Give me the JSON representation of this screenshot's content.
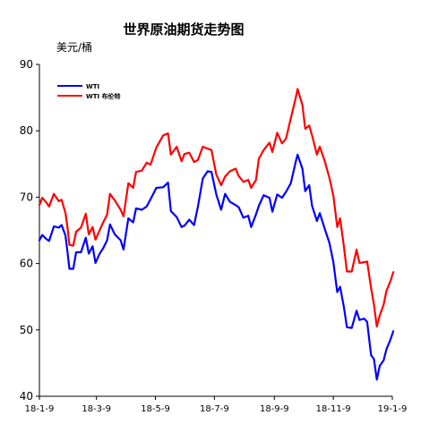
{
  "chart_data": {
    "type": "line",
    "title": "世界原油期货走势图",
    "ylabel": "美元/桶",
    "xlabel": "",
    "ylim": [
      40,
      90
    ],
    "yticks": [
      40,
      50,
      60,
      70,
      80,
      90
    ],
    "xticks": [
      "18-1-9",
      "18-3-9",
      "18-5-9",
      "18-7-9",
      "18-9-9",
      "18-11-9",
      "19-1-9"
    ],
    "grid": false,
    "legend_position": "top-left",
    "series": [
      {
        "name": "WTI",
        "color": "#0000ff",
        "values": [
          [
            "18-1-9",
            63.5
          ],
          [
            "18-1-12",
            64.3
          ],
          [
            "18-1-16",
            63.7
          ],
          [
            "18-1-19",
            63.4
          ],
          [
            "18-1-24",
            65.6
          ],
          [
            "18-1-29",
            65.4
          ],
          [
            "18-2-1",
            65.8
          ],
          [
            "18-2-5",
            64.2
          ],
          [
            "18-2-7",
            61.8
          ],
          [
            "18-2-9",
            59.2
          ],
          [
            "18-2-13",
            59.2
          ],
          [
            "18-2-16",
            61.7
          ],
          [
            "18-2-21",
            61.7
          ],
          [
            "18-2-26",
            63.9
          ],
          [
            "18-3-1",
            61.5
          ],
          [
            "18-3-5",
            62.6
          ],
          [
            "18-3-8",
            60.1
          ],
          [
            "18-3-12",
            61.4
          ],
          [
            "18-3-16",
            62.3
          ],
          [
            "18-3-20",
            63.5
          ],
          [
            "18-3-23",
            65.9
          ],
          [
            "18-3-28",
            64.4
          ],
          [
            "18-4-3",
            63.5
          ],
          [
            "18-4-6",
            62.1
          ],
          [
            "18-4-11",
            66.8
          ],
          [
            "18-4-16",
            66.2
          ],
          [
            "18-4-19",
            68.3
          ],
          [
            "18-4-25",
            68.1
          ],
          [
            "18-4-30",
            68.6
          ],
          [
            "18-5-4",
            69.7
          ],
          [
            "18-5-10",
            71.4
          ],
          [
            "18-5-17",
            71.5
          ],
          [
            "18-5-22",
            72.2
          ],
          [
            "18-5-25",
            67.9
          ],
          [
            "18-5-31",
            67.0
          ],
          [
            "18-6-5",
            65.5
          ],
          [
            "18-6-8",
            65.7
          ],
          [
            "18-6-13",
            66.6
          ],
          [
            "18-6-18",
            65.8
          ],
          [
            "18-6-22",
            68.6
          ],
          [
            "18-6-27",
            72.8
          ],
          [
            "18-7-2",
            73.9
          ],
          [
            "18-7-6",
            73.8
          ],
          [
            "18-7-11",
            70.4
          ],
          [
            "18-7-16",
            68.1
          ],
          [
            "18-7-20",
            70.5
          ],
          [
            "18-7-25",
            69.3
          ],
          [
            "18-7-31",
            68.8
          ],
          [
            "18-8-3",
            68.5
          ],
          [
            "18-8-8",
            66.9
          ],
          [
            "18-8-13",
            67.2
          ],
          [
            "18-8-16",
            65.5
          ],
          [
            "18-8-21",
            67.4
          ],
          [
            "18-8-24",
            68.7
          ],
          [
            "18-8-29",
            70.3
          ],
          [
            "18-9-4",
            69.9
          ],
          [
            "18-9-7",
            67.8
          ],
          [
            "18-9-12",
            70.4
          ],
          [
            "18-9-17",
            69.9
          ],
          [
            "18-9-21",
            70.8
          ],
          [
            "18-9-26",
            72.1
          ],
          [
            "18-10-1",
            75.3
          ],
          [
            "18-10-3",
            76.4
          ],
          [
            "18-10-8",
            74.3
          ],
          [
            "18-10-11",
            70.9
          ],
          [
            "18-10-15",
            71.8
          ],
          [
            "18-10-18",
            68.7
          ],
          [
            "18-10-23",
            66.4
          ],
          [
            "18-10-26",
            67.6
          ],
          [
            "18-10-31",
            65.3
          ],
          [
            "18-11-5",
            63.1
          ],
          [
            "18-11-9",
            60.2
          ],
          [
            "18-11-13",
            55.7
          ],
          [
            "18-11-16",
            56.5
          ],
          [
            "18-11-20",
            53.4
          ],
          [
            "18-11-23",
            50.4
          ],
          [
            "18-11-28",
            50.3
          ],
          [
            "18-12-3",
            52.9
          ],
          [
            "18-12-6",
            51.5
          ],
          [
            "18-12-11",
            51.7
          ],
          [
            "18-12-14",
            51.2
          ],
          [
            "18-12-18",
            46.2
          ],
          [
            "18-12-21",
            45.6
          ],
          [
            "18-12-24",
            42.5
          ],
          [
            "18-12-27",
            44.6
          ],
          [
            "18-12-31",
            45.4
          ],
          [
            "19-1-3",
            47.1
          ],
          [
            "19-1-7",
            48.5
          ],
          [
            "19-1-10",
            49.8
          ]
        ]
      },
      {
        "name": "WTI 布伦特",
        "color": "#ff0000",
        "values": [
          [
            "18-1-9",
            68.8
          ],
          [
            "18-1-12",
            69.9
          ],
          [
            "18-1-16",
            69.2
          ],
          [
            "18-1-19",
            68.6
          ],
          [
            "18-1-24",
            70.5
          ],
          [
            "18-1-29",
            69.4
          ],
          [
            "18-2-1",
            69.6
          ],
          [
            "18-2-5",
            67.6
          ],
          [
            "18-2-7",
            65.5
          ],
          [
            "18-2-9",
            62.8
          ],
          [
            "18-2-13",
            62.7
          ],
          [
            "18-2-16",
            64.8
          ],
          [
            "18-2-21",
            65.4
          ],
          [
            "18-2-26",
            67.5
          ],
          [
            "18-3-1",
            64.4
          ],
          [
            "18-3-5",
            65.5
          ],
          [
            "18-3-8",
            63.6
          ],
          [
            "18-3-12",
            64.9
          ],
          [
            "18-3-16",
            66.2
          ],
          [
            "18-3-20",
            67.4
          ],
          [
            "18-3-23",
            70.5
          ],
          [
            "18-3-28",
            69.5
          ],
          [
            "18-4-3",
            68.1
          ],
          [
            "18-4-6",
            67.1
          ],
          [
            "18-4-11",
            72.1
          ],
          [
            "18-4-16",
            71.4
          ],
          [
            "18-4-19",
            73.8
          ],
          [
            "18-4-25",
            74.0
          ],
          [
            "18-4-30",
            75.2
          ],
          [
            "18-5-4",
            74.9
          ],
          [
            "18-5-10",
            77.5
          ],
          [
            "18-5-17",
            79.3
          ],
          [
            "18-5-22",
            79.6
          ],
          [
            "18-5-25",
            76.4
          ],
          [
            "18-5-31",
            77.6
          ],
          [
            "18-6-5",
            75.4
          ],
          [
            "18-6-8",
            76.5
          ],
          [
            "18-6-13",
            76.7
          ],
          [
            "18-6-18",
            75.3
          ],
          [
            "18-6-22",
            75.6
          ],
          [
            "18-6-27",
            77.6
          ],
          [
            "18-7-2",
            77.3
          ],
          [
            "18-7-6",
            77.1
          ],
          [
            "18-7-11",
            73.4
          ],
          [
            "18-7-16",
            71.8
          ],
          [
            "18-7-20",
            73.1
          ],
          [
            "18-7-25",
            73.9
          ],
          [
            "18-7-31",
            74.3
          ],
          [
            "18-8-3",
            73.2
          ],
          [
            "18-8-8",
            72.3
          ],
          [
            "18-8-13",
            72.6
          ],
          [
            "18-8-16",
            71.4
          ],
          [
            "18-8-21",
            72.6
          ],
          [
            "18-8-24",
            75.8
          ],
          [
            "18-8-29",
            77.1
          ],
          [
            "18-9-4",
            78.2
          ],
          [
            "18-9-7",
            76.8
          ],
          [
            "18-9-12",
            79.7
          ],
          [
            "18-9-17",
            78.1
          ],
          [
            "18-9-21",
            78.8
          ],
          [
            "18-9-26",
            81.9
          ],
          [
            "18-10-1",
            84.9
          ],
          [
            "18-10-3",
            86.3
          ],
          [
            "18-10-8",
            83.9
          ],
          [
            "18-10-11",
            80.3
          ],
          [
            "18-10-15",
            80.8
          ],
          [
            "18-10-18",
            79.3
          ],
          [
            "18-10-23",
            76.4
          ],
          [
            "18-10-26",
            77.6
          ],
          [
            "18-10-31",
            75.5
          ],
          [
            "18-11-5",
            72.9
          ],
          [
            "18-11-9",
            70.2
          ],
          [
            "18-11-13",
            65.5
          ],
          [
            "18-11-16",
            66.8
          ],
          [
            "18-11-20",
            62.5
          ],
          [
            "18-11-23",
            58.8
          ],
          [
            "18-11-28",
            58.8
          ],
          [
            "18-12-3",
            62.1
          ],
          [
            "18-12-6",
            60.1
          ],
          [
            "18-12-11",
            60.2
          ],
          [
            "18-12-14",
            60.3
          ],
          [
            "18-12-18",
            56.3
          ],
          [
            "18-12-21",
            53.8
          ],
          [
            "18-12-24",
            50.5
          ],
          [
            "18-12-27",
            52.2
          ],
          [
            "18-12-31",
            53.8
          ],
          [
            "19-1-3",
            55.9
          ],
          [
            "19-1-7",
            57.3
          ],
          [
            "19-1-10",
            58.7
          ]
        ]
      }
    ]
  }
}
